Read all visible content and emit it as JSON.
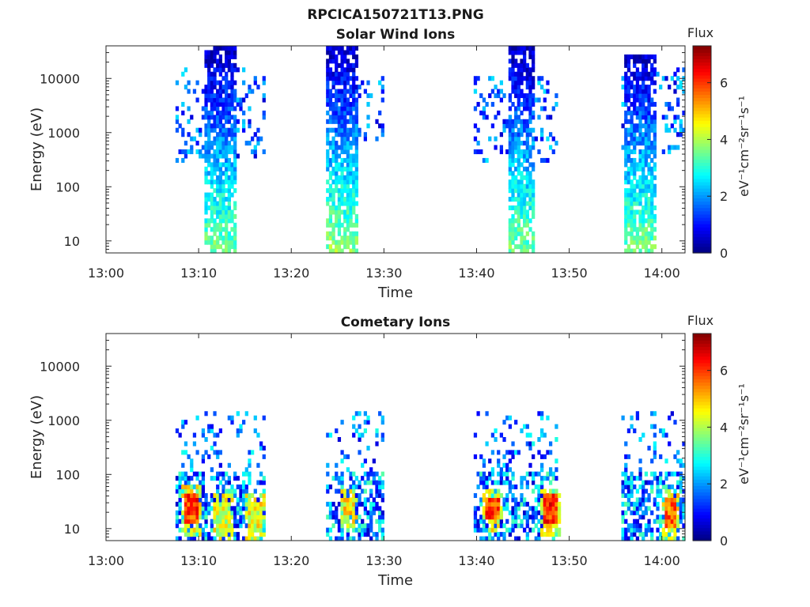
{
  "figure_title": "RPCICA150721T13.PNG",
  "colors": {
    "colormap": "jet",
    "axes": "#262626",
    "background": "#ffffff"
  },
  "chart_data": [
    {
      "type": "heatmap",
      "title": "Solar Wind Ions",
      "xlabel": "Time",
      "ylabel": "Energy (eV)",
      "x_ticks": [
        "13:00",
        "13:10",
        "13:20",
        "13:30",
        "13:40",
        "13:50",
        "14:00"
      ],
      "x_range_minutes": [
        0,
        62.5
      ],
      "y_scale": "log",
      "y_ticks": [
        "10",
        "100",
        "1000",
        "10000"
      ],
      "y_range": [
        6,
        40000
      ],
      "colorbar": {
        "label": "Flux",
        "unit": "eV⁻¹cm⁻²sr⁻¹s⁻¹",
        "ticks": [
          "0",
          "2",
          "4",
          "6"
        ],
        "range": [
          0,
          7.3
        ]
      },
      "bursts": [
        {
          "start_min": 7.5,
          "end_min": 17.2,
          "core_start_min": 10.7,
          "core_end_min": 14.0,
          "emin": 6,
          "emax": 40000,
          "sparse_emin": 300,
          "sparse_emax": 15000,
          "core_flux": [
            0.4,
            3.6
          ],
          "sparse_flux": [
            0.5,
            2.6
          ]
        },
        {
          "start_min": 23.8,
          "end_min": 30.0,
          "core_start_min": 23.9,
          "core_end_min": 27.3,
          "emin": 6,
          "emax": 40000,
          "sparse_emin": 700,
          "sparse_emax": 12000,
          "core_flux": [
            0.4,
            3.8
          ],
          "sparse_flux": [
            0.5,
            2.6
          ]
        },
        {
          "start_min": 39.8,
          "end_min": 48.9,
          "core_start_min": 43.3,
          "core_end_min": 46.3,
          "emin": 6,
          "emax": 40000,
          "sparse_emin": 300,
          "sparse_emax": 12000,
          "core_flux": [
            0.4,
            3.6
          ],
          "sparse_flux": [
            0.5,
            2.6
          ]
        },
        {
          "start_min": 55.7,
          "end_min": 62.5,
          "core_start_min": 55.8,
          "core_end_min": 59.4,
          "emin": 6,
          "emax": 30000,
          "sparse_emin": 400,
          "sparse_emax": 15000,
          "core_flux": [
            0.4,
            3.6
          ],
          "sparse_flux": [
            0.5,
            2.6
          ]
        }
      ]
    },
    {
      "type": "heatmap",
      "title": "Cometary Ions",
      "xlabel": "Time",
      "ylabel": "Energy (eV)",
      "x_ticks": [
        "13:00",
        "13:10",
        "13:20",
        "13:30",
        "13:40",
        "13:50",
        "14:00"
      ],
      "x_range_minutes": [
        0,
        62.5
      ],
      "y_scale": "log",
      "y_ticks": [
        "10",
        "100",
        "1000",
        "10000"
      ],
      "y_range": [
        6,
        40000
      ],
      "colorbar": {
        "label": "Flux",
        "unit": "eV⁻¹cm⁻²sr⁻¹s⁻¹",
        "ticks": [
          "0",
          "2",
          "4",
          "6"
        ],
        "range": [
          0,
          7.3
        ]
      },
      "bursts": [
        {
          "start_min": 7.5,
          "end_min": 17.2,
          "emin": 6,
          "emax": 1500,
          "dense_emax": 120
        },
        {
          "start_min": 23.8,
          "end_min": 30.0,
          "emin": 6,
          "emax": 1500,
          "dense_emax": 120
        },
        {
          "start_min": 39.8,
          "end_min": 48.9,
          "emin": 6,
          "emax": 1400,
          "dense_emax": 120
        },
        {
          "start_min": 55.7,
          "end_min": 62.5,
          "emin": 6,
          "emax": 1400,
          "dense_emax": 120
        }
      ],
      "hotspots": [
        {
          "t_min": 9.2,
          "e_low": 12,
          "e_high": 45,
          "peak_flux": 6.8
        },
        {
          "t_min": 12.6,
          "e_low": 8,
          "e_high": 30,
          "peak_flux": 5.0
        },
        {
          "t_min": 16.1,
          "e_low": 8,
          "e_high": 30,
          "peak_flux": 5.2
        },
        {
          "t_min": 26.3,
          "e_low": 18,
          "e_high": 40,
          "peak_flux": 5.5
        },
        {
          "t_min": 41.7,
          "e_low": 14,
          "e_high": 40,
          "peak_flux": 6.6
        },
        {
          "t_min": 48.0,
          "e_low": 12,
          "e_high": 42,
          "peak_flux": 6.9
        },
        {
          "t_min": 60.9,
          "e_low": 10,
          "e_high": 40,
          "peak_flux": 6.3
        }
      ]
    }
  ]
}
